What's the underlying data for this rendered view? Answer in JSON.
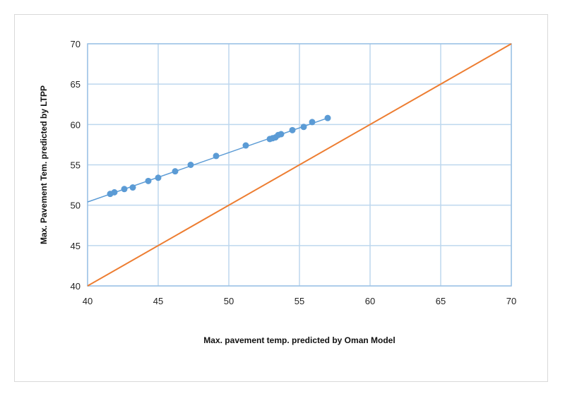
{
  "chart_data": {
    "type": "scatter",
    "title": "",
    "xlabel": "Max. pavement temp. predicted by Oman Model",
    "ylabel": "Max. Pavement Tem. predicted by LTPP",
    "xlim": [
      40,
      70
    ],
    "ylim": [
      40,
      70
    ],
    "xticks": [
      40,
      45,
      50,
      55,
      60,
      65,
      70
    ],
    "yticks": [
      40,
      45,
      50,
      55,
      60,
      65,
      70
    ],
    "grid": true,
    "legend": "none",
    "series": [
      {
        "type": "scatter",
        "color": "#5b9bd5",
        "x": [
          41.6,
          41.9,
          42.6,
          43.2,
          44.3,
          45.0,
          46.2,
          47.3,
          49.1,
          51.2,
          52.9,
          53.1,
          53.3,
          53.5,
          53.7,
          54.5,
          55.3,
          55.9,
          57.0
        ],
        "y": [
          51.4,
          51.6,
          52.0,
          52.2,
          53.0,
          53.4,
          54.2,
          55.0,
          56.1,
          57.4,
          58.2,
          58.3,
          58.4,
          58.7,
          58.8,
          59.3,
          59.7,
          60.3,
          60.8
        ]
      },
      {
        "type": "trendline",
        "color": "#5b9bd5",
        "x": [
          40,
          57.0
        ],
        "y": [
          50.4,
          60.8
        ]
      },
      {
        "type": "line",
        "color": "#ed7d31",
        "x": [
          40,
          70
        ],
        "y": [
          40,
          70
        ]
      }
    ]
  }
}
